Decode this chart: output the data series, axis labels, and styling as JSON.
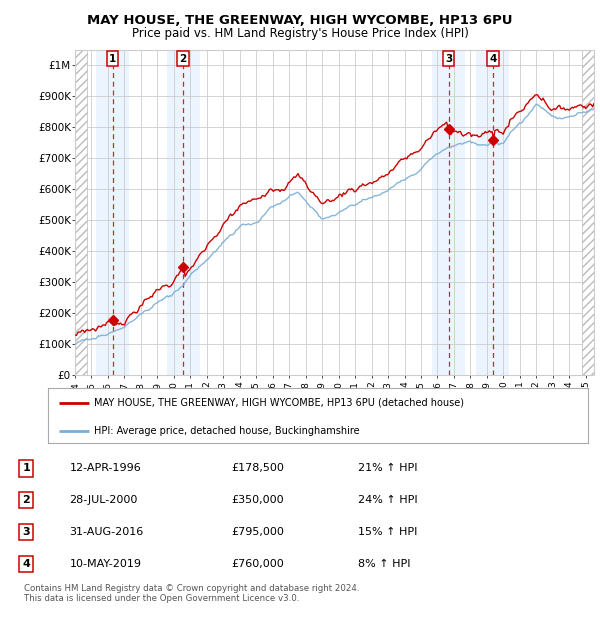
{
  "title": "MAY HOUSE, THE GREENWAY, HIGH WYCOMBE, HP13 6PU",
  "subtitle": "Price paid vs. HM Land Registry's House Price Index (HPI)",
  "footer": "Contains HM Land Registry data © Crown copyright and database right 2024.\nThis data is licensed under the Open Government Licence v3.0.",
  "legend_line1": "MAY HOUSE, THE GREENWAY, HIGH WYCOMBE, HP13 6PU (detached house)",
  "legend_line2": "HPI: Average price, detached house, Buckinghamshire",
  "sales": [
    {
      "num": 1,
      "date": "12-APR-1996",
      "price": 178500,
      "pct": "21%",
      "year_x": 1996.28
    },
    {
      "num": 2,
      "date": "28-JUL-2000",
      "price": 350000,
      "pct": "24%",
      "year_x": 2000.57
    },
    {
      "num": 3,
      "date": "31-AUG-2016",
      "price": 795000,
      "pct": "15%",
      "year_x": 2016.67
    },
    {
      "num": 4,
      "date": "10-MAY-2019",
      "price": 760000,
      "pct": "8%",
      "year_x": 2019.36
    }
  ],
  "xmin": 1994.0,
  "xmax": 2025.5,
  "ymin": 0,
  "ymax": 1050000,
  "yticks": [
    0,
    100000,
    200000,
    300000,
    400000,
    500000,
    600000,
    700000,
    800000,
    900000,
    1000000
  ],
  "ytick_labels": [
    "£0",
    "£100K",
    "£200K",
    "£300K",
    "£400K",
    "£500K",
    "£600K",
    "£700K",
    "£800K",
    "£900K",
    "£1M"
  ],
  "red_color": "#cc0000",
  "blue_color": "#7aaed6",
  "hatch_color": "#bbbbbb",
  "shade_color": "#ddeeff",
  "grid_color": "#cccccc",
  "bg_color": "#ffffff",
  "hatch_left_end": 1994.75,
  "hatch_right_start": 2024.75
}
